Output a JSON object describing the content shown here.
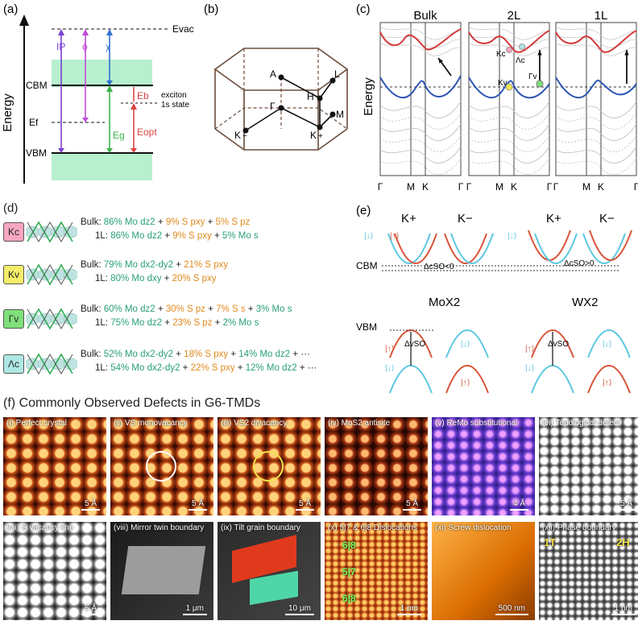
{
  "panel_labels": {
    "a": "(a)",
    "b": "(b)",
    "c": "(c)",
    "d": "(d)",
    "e": "(e)",
    "f": "(f)"
  },
  "panel_a": {
    "y_axis": "Energy",
    "levels": [
      "Evac",
      "CBM",
      "Ef",
      "VBM"
    ],
    "arrows": [
      "IP",
      "ϕ",
      "χ",
      "Eg",
      "Eb",
      "Eopt"
    ],
    "exciton_label": [
      "exciton",
      "1s state"
    ]
  },
  "panel_b": {
    "points": [
      "A",
      "L",
      "H",
      "Γ",
      "M",
      "K",
      "K"
    ]
  },
  "panel_c": {
    "titles": [
      "Bulk",
      "2L",
      "1L"
    ],
    "y_axis": "Energy",
    "x_ticks": [
      "Γ",
      "M",
      "K",
      "Γ"
    ],
    "labels": [
      "Kc",
      "Λc",
      "Kv",
      "Γv"
    ]
  },
  "panel_d": {
    "badges": [
      "Kc",
      "Kv",
      "Γv",
      "Λc"
    ],
    "badge_colors": [
      "#f6a6c1",
      "#f5ee6a",
      "#7fe07a",
      "#aee8e4"
    ],
    "lines": [
      [
        "Bulk: 86% Mo dz2 + 9% S pxy + 5% S pz",
        "1L: 86% Mo dz2 + 9% S pxy + 5% Mo s"
      ],
      [
        "Bulk: 79% Mo dx2-dy2 + 21% S pxy",
        "1L: 80% Mo dxy + 20% S pxy"
      ],
      [
        "Bulk: 60% Mo dz2 + 30% S pz + 7% S s + 3% Mo s",
        "1L: 75% Mo dz2 + 23% S pz + 2% Mo s"
      ],
      [
        "Bulk: 52% Mo dx2-dy2 + 18% S pxy + 14% Mo dz2 + ···",
        "1L: 54% Mo dx2-dy2 + 22% S pxy + 12% Mo dz2 + ···"
      ]
    ]
  },
  "panel_e": {
    "valleys": [
      "K+",
      "K−",
      "K+",
      "K−"
    ],
    "cbm": "CBM",
    "vbm": "VBM",
    "mox2": "MoX2",
    "wx2": "WX2",
    "soc_c_lt": "ΔcSO<0",
    "soc_c_gt": "ΔcSO>0",
    "soc_v": "ΔvSO",
    "spin_down": "|↓⟩",
    "spin_up": "|↑⟩"
  },
  "panel_f": {
    "title": "Commonly Observed Defects in G6-TMDs",
    "tiles": [
      {
        "caption": "(i) Perfect crystal",
        "scale": "5 Å"
      },
      {
        "caption": "(ii) VS monovacancy",
        "scale": "5 Å"
      },
      {
        "caption": "(iii) VS2 divacancy",
        "scale": "5 Å"
      },
      {
        "caption": "(iv) MoS2 antisite",
        "scale": "5 Å"
      },
      {
        "caption": "(v) ReMo substitutional",
        "scale": "4 Å"
      },
      {
        "caption": "(vi) Topological defect",
        "scale": "5 Å"
      },
      {
        "caption": "(vii) S vacancy line",
        "scale": "5 Å"
      },
      {
        "caption": "(viii) Mirror twin boundary",
        "scale": "1 μm"
      },
      {
        "caption": "(ix) Tilt grain boundary",
        "scale": "10 μm"
      },
      {
        "caption": "(x) 5|7 & 6|8 Dislocations",
        "scale": "1 nm"
      },
      {
        "caption": "(xi) Screw dislocation",
        "scale": "500 nm"
      },
      {
        "caption": "(xii) Phase boundary",
        "scale": "1 nm"
      }
    ],
    "dislocation_labels": [
      "6|8",
      "5|7",
      "6|8"
    ],
    "phase_labels": [
      "1T",
      "2H"
    ]
  }
}
